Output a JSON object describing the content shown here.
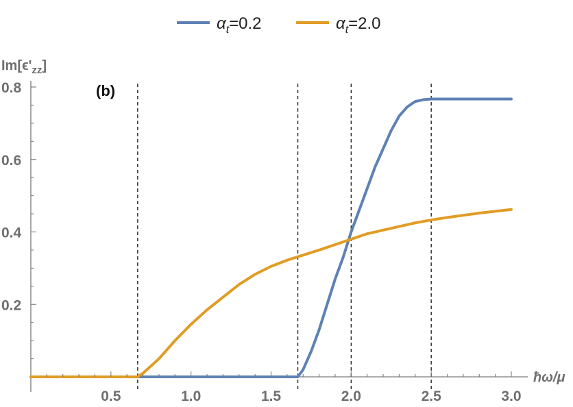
{
  "chart_data": {
    "type": "line",
    "panel_label": "(b)",
    "xlabel": "ħω/μ",
    "ylabel_base": "Im[ϵ'",
    "ylabel_sub": "zz",
    "ylabel_close": "]",
    "xlim": [
      0.0,
      3.0
    ],
    "ylim": [
      0.0,
      0.8
    ],
    "x_ticks": [
      0.5,
      1.0,
      1.5,
      2.0,
      2.5,
      3.0
    ],
    "x_tick_labels": [
      "0.5",
      "1.0",
      "1.5",
      "2.0",
      "2.5",
      "3.0"
    ],
    "y_ticks": [
      0.2,
      0.4,
      0.6,
      0.8
    ],
    "y_tick_labels": [
      "0.2",
      "0.4",
      "0.6",
      "0.8"
    ],
    "vertical_lines": [
      0.667,
      1.667,
      2.0,
      2.5
    ],
    "legend_position": "top-center",
    "series": [
      {
        "name_symbol": "α",
        "name_sub": "t",
        "name_value": "=0.2",
        "color": "#5e81b5",
        "x": [
          0.0,
          1.667,
          1.7,
          1.75,
          1.8,
          1.85,
          1.9,
          1.95,
          2.0,
          2.05,
          2.1,
          2.15,
          2.2,
          2.25,
          2.3,
          2.35,
          2.4,
          2.45,
          2.5,
          3.0
        ],
        "y": [
          0.0,
          0.0,
          0.02,
          0.07,
          0.13,
          0.2,
          0.27,
          0.33,
          0.4,
          0.46,
          0.52,
          0.58,
          0.63,
          0.68,
          0.72,
          0.745,
          0.76,
          0.765,
          0.767,
          0.767
        ]
      },
      {
        "name_symbol": "α",
        "name_sub": "t",
        "name_value": "=2.0",
        "color": "#e19c24",
        "x": [
          0.0,
          0.667,
          0.7,
          0.8,
          0.9,
          1.0,
          1.1,
          1.2,
          1.3,
          1.4,
          1.5,
          1.6,
          1.7,
          1.8,
          1.9,
          2.0,
          2.1,
          2.2,
          2.3,
          2.4,
          2.5,
          2.6,
          2.7,
          2.8,
          2.9,
          3.0
        ],
        "y": [
          0.0,
          0.0,
          0.01,
          0.05,
          0.1,
          0.145,
          0.185,
          0.22,
          0.255,
          0.283,
          0.305,
          0.322,
          0.336,
          0.35,
          0.365,
          0.38,
          0.395,
          0.405,
          0.415,
          0.425,
          0.433,
          0.44,
          0.446,
          0.452,
          0.457,
          0.462
        ]
      }
    ]
  }
}
